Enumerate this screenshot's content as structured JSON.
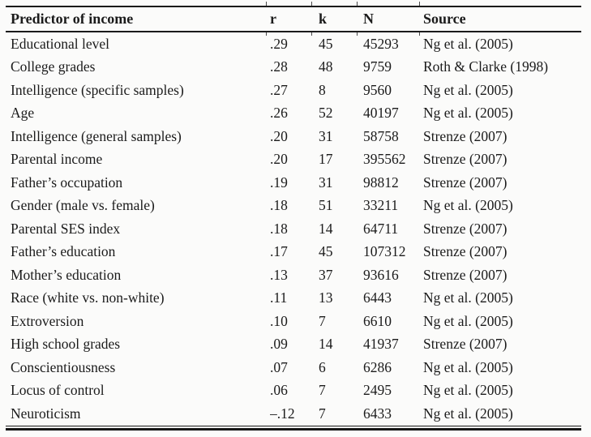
{
  "table": {
    "headers": {
      "predictor": "Predictor of income",
      "r": "r",
      "k": "k",
      "n": "N",
      "source": "Source"
    },
    "rows": [
      {
        "predictor": "Educational level",
        "r": ".29",
        "k": "45",
        "n": "45293",
        "source": "Ng et al. (2005)"
      },
      {
        "predictor": "College grades",
        "r": ".28",
        "k": "48",
        "n": "9759",
        "source": "Roth & Clarke (1998)"
      },
      {
        "predictor": "Intelligence (specific samples)",
        "r": ".27",
        "k": "8",
        "n": "9560",
        "source": "Ng et al. (2005)"
      },
      {
        "predictor": "Age",
        "r": ".26",
        "k": "52",
        "n": "40197",
        "source": "Ng et al. (2005)"
      },
      {
        "predictor": "Intelligence (general samples)",
        "r": ".20",
        "k": "31",
        "n": "58758",
        "source": "Strenze (2007)"
      },
      {
        "predictor": "Parental income",
        "r": ".20",
        "k": "17",
        "n": "395562",
        "source": "Strenze (2007)"
      },
      {
        "predictor": "Father’s occupation",
        "r": ".19",
        "k": "31",
        "n": "98812",
        "source": "Strenze (2007)"
      },
      {
        "predictor": "Gender (male vs. female)",
        "r": ".18",
        "k": "51",
        "n": "33211",
        "source": "Ng et al. (2005)"
      },
      {
        "predictor": "Parental SES index",
        "r": ".18",
        "k": "14",
        "n": "64711",
        "source": "Strenze (2007)"
      },
      {
        "predictor": "Father’s education",
        "r": ".17",
        "k": "45",
        "n": "107312",
        "source": "Strenze (2007)"
      },
      {
        "predictor": "Mother’s education",
        "r": ".13",
        "k": "37",
        "n": "93616",
        "source": "Strenze (2007)"
      },
      {
        "predictor": "Race (white vs. non-white)",
        "r": ".11",
        "k": "13",
        "n": "6443",
        "source": "Ng et al. (2005)"
      },
      {
        "predictor": "Extroversion",
        "r": ".10",
        "k": "7",
        "n": "6610",
        "source": "Ng et al. (2005)"
      },
      {
        "predictor": "High school grades",
        "r": ".09",
        "k": "14",
        "n": "41937",
        "source": "Strenze (2007)"
      },
      {
        "predictor": "Conscientiousness",
        "r": ".07",
        "k": "6",
        "n": "6286",
        "source": "Ng et al. (2005)"
      },
      {
        "predictor": "Locus of control",
        "r": ".06",
        "k": "7",
        "n": "2495",
        "source": "Ng et al. (2005)"
      },
      {
        "predictor": "Neuroticism",
        "r": "–.12",
        "k": "7",
        "n": "6433",
        "source": "Ng et al. (2005)"
      }
    ]
  }
}
